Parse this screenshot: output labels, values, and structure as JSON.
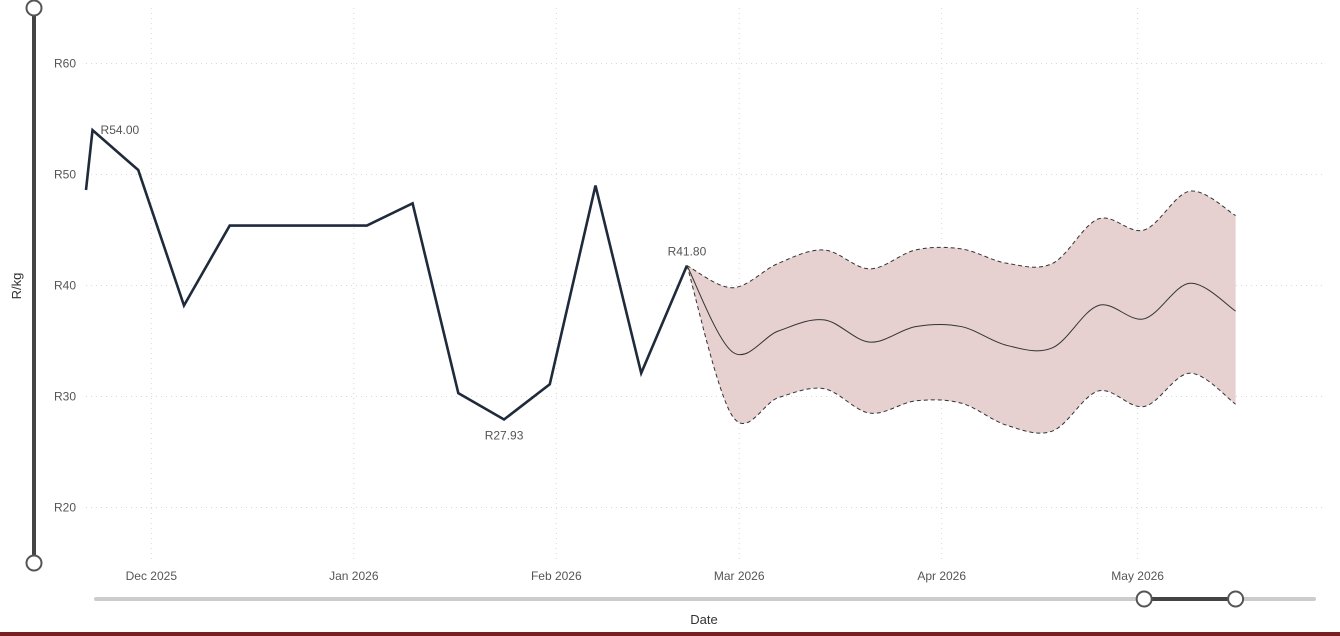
{
  "chart_data": {
    "type": "line",
    "ylabel": "R/kg",
    "xlabel": "Date",
    "ylim": [
      15,
      65
    ],
    "xlim": [
      "2025-11-21",
      "2026-05-28"
    ],
    "y_ticks": [
      {
        "value": 20,
        "label": "R20"
      },
      {
        "value": 30,
        "label": "R30"
      },
      {
        "value": 40,
        "label": "R40"
      },
      {
        "value": 50,
        "label": "R50"
      },
      {
        "value": 60,
        "label": "R60"
      }
    ],
    "x_ticks": [
      {
        "date": "2025-12-01",
        "label": "Dec 2025"
      },
      {
        "date": "2026-01-01",
        "label": "Jan 2026"
      },
      {
        "date": "2026-02-01",
        "label": "Feb 2026"
      },
      {
        "date": "2026-03-01",
        "label": "Mar 2026"
      },
      {
        "date": "2026-04-01",
        "label": "Apr 2026"
      },
      {
        "date": "2026-05-01",
        "label": "May 2026"
      }
    ],
    "grid": true,
    "series": [
      {
        "role": "history",
        "color": "#1f2a3a",
        "points": [
          {
            "x": "2025-11-21",
            "y": 48.6
          },
          {
            "x": "2025-11-22",
            "y": 54.0
          },
          {
            "x": "2025-11-29",
            "y": 50.4
          },
          {
            "x": "2025-12-06",
            "y": 38.2
          },
          {
            "x": "2025-12-13",
            "y": 45.4
          },
          {
            "x": "2025-12-20",
            "y": 45.4
          },
          {
            "x": "2025-12-27",
            "y": 45.4
          },
          {
            "x": "2026-01-03",
            "y": 45.4
          },
          {
            "x": "2026-01-10",
            "y": 47.4
          },
          {
            "x": "2026-01-17",
            "y": 30.3
          },
          {
            "x": "2026-01-24",
            "y": 27.93
          },
          {
            "x": "2026-01-31",
            "y": 31.1
          },
          {
            "x": "2026-02-07",
            "y": 49.0
          },
          {
            "x": "2026-02-14",
            "y": 32.1
          },
          {
            "x": "2026-02-21",
            "y": 41.8
          }
        ]
      },
      {
        "role": "forecast",
        "color": "#333333",
        "points": [
          {
            "x": "2026-02-21",
            "y": 41.8
          },
          {
            "x": "2026-02-28",
            "y": 34.0
          },
          {
            "x": "2026-03-07",
            "y": 35.9
          },
          {
            "x": "2026-03-14",
            "y": 36.9
          },
          {
            "x": "2026-03-21",
            "y": 34.9
          },
          {
            "x": "2026-03-28",
            "y": 36.3
          },
          {
            "x": "2026-04-04",
            "y": 36.3
          },
          {
            "x": "2026-04-11",
            "y": 34.6
          },
          {
            "x": "2026-04-18",
            "y": 34.4
          },
          {
            "x": "2026-04-25",
            "y": 38.2
          },
          {
            "x": "2026-05-02",
            "y": 37.0
          },
          {
            "x": "2026-05-09",
            "y": 40.2
          },
          {
            "x": "2026-05-16",
            "y": 37.7
          }
        ]
      }
    ],
    "confidence_band": {
      "fill": "#e6d0d0",
      "stroke": "#333333",
      "upper": [
        {
          "x": "2026-02-21",
          "y": 41.8
        },
        {
          "x": "2026-02-28",
          "y": 39.8
        },
        {
          "x": "2026-03-07",
          "y": 42.0
        },
        {
          "x": "2026-03-14",
          "y": 43.2
        },
        {
          "x": "2026-03-21",
          "y": 41.5
        },
        {
          "x": "2026-03-28",
          "y": 43.2
        },
        {
          "x": "2026-04-04",
          "y": 43.3
        },
        {
          "x": "2026-04-11",
          "y": 42.0
        },
        {
          "x": "2026-04-18",
          "y": 42.0
        },
        {
          "x": "2026-04-25",
          "y": 46.0
        },
        {
          "x": "2026-05-02",
          "y": 45.0
        },
        {
          "x": "2026-05-09",
          "y": 48.5
        },
        {
          "x": "2026-05-16",
          "y": 46.3
        }
      ],
      "lower": [
        {
          "x": "2026-02-21",
          "y": 41.8
        },
        {
          "x": "2026-02-28",
          "y": 28.2
        },
        {
          "x": "2026-03-07",
          "y": 29.9
        },
        {
          "x": "2026-03-14",
          "y": 30.7
        },
        {
          "x": "2026-03-21",
          "y": 28.5
        },
        {
          "x": "2026-03-28",
          "y": 29.6
        },
        {
          "x": "2026-04-04",
          "y": 29.4
        },
        {
          "x": "2026-04-11",
          "y": 27.4
        },
        {
          "x": "2026-04-18",
          "y": 26.9
        },
        {
          "x": "2026-04-25",
          "y": 30.5
        },
        {
          "x": "2026-05-02",
          "y": 29.1
        },
        {
          "x": "2026-05-09",
          "y": 32.1
        },
        {
          "x": "2026-05-16",
          "y": 29.3
        }
      ]
    },
    "annotations": [
      {
        "x": "2025-11-22",
        "y": 54.0,
        "label": "R54.00",
        "position": "right"
      },
      {
        "x": "2026-01-24",
        "y": 27.93,
        "label": "R27.93",
        "position": "below"
      },
      {
        "x": "2026-02-21",
        "y": 41.8,
        "label": "R41.80",
        "position": "above"
      }
    ],
    "range_sliders": {
      "y": {
        "from": 15,
        "to": 65
      },
      "x": {
        "from": "2026-05-02",
        "to": "2026-05-16"
      }
    }
  }
}
